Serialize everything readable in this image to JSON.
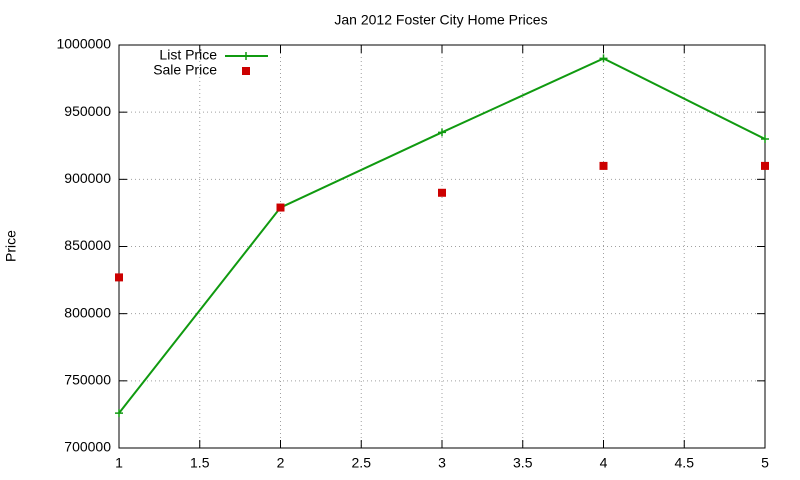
{
  "chart_data": {
    "type": "line",
    "title": "Jan 2012 Foster City Home Prices",
    "y_label": "Price",
    "x": [
      1,
      2,
      3,
      4,
      5
    ],
    "series": [
      {
        "name": "List Price",
        "color": "#109a10",
        "values": [
          726000,
          879000,
          935000,
          990000,
          930000
        ],
        "line": true,
        "marker": "plus"
      },
      {
        "name": "Sale Price",
        "color": "#cc0000",
        "values": [
          827000,
          879000,
          890000,
          910000,
          910000
        ],
        "line": false,
        "marker": "square"
      }
    ],
    "xlim": [
      1,
      5
    ],
    "xticks": [
      1,
      1.5,
      2,
      2.5,
      3,
      3.5,
      4,
      4.5,
      5
    ],
    "ylim": [
      700000,
      1000000
    ],
    "yticks": [
      700000,
      750000,
      800000,
      850000,
      900000,
      950000,
      1000000
    ],
    "grid": true,
    "legend": "top-left"
  }
}
